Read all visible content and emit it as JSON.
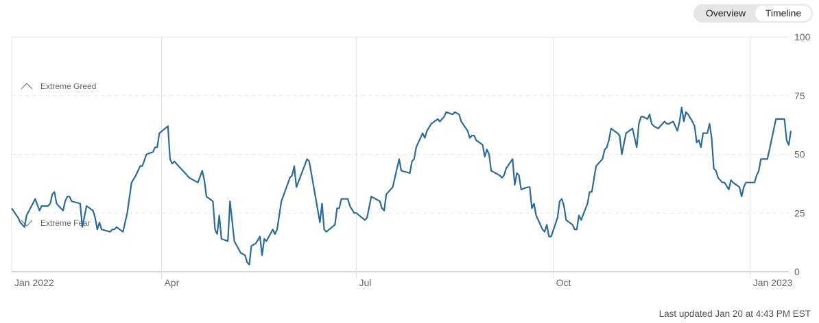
{
  "view_toggle": {
    "options": [
      "Overview",
      "Timeline"
    ],
    "selected": "Timeline"
  },
  "footer": {
    "last_updated": "Last updated Jan 20 at 4:43 PM EST"
  },
  "colors": {
    "line": "#2c6a9a",
    "grid": "#e3e3e3",
    "axis_text": "#666666",
    "band_text": "#666666"
  },
  "chart_data": {
    "type": "line",
    "title": "",
    "xlabel": "",
    "ylabel": "",
    "ylim": [
      0,
      100
    ],
    "xlim": [
      "2022-01-21",
      "2023-01-20"
    ],
    "y_ticks": [
      0,
      25,
      50,
      75,
      100
    ],
    "x_ticks": [
      {
        "date": "2022-01-21",
        "label": "Jan 2022"
      },
      {
        "date": "2022-04-01",
        "label": "Apr"
      },
      {
        "date": "2022-07-01",
        "label": "Jul"
      },
      {
        "date": "2022-10-01",
        "label": "Oct"
      },
      {
        "date": "2023-01-01",
        "label": "Jan 2023"
      }
    ],
    "grid": true,
    "annotations": [
      {
        "label": "Extreme Greed",
        "icon": "chevron-up-icon",
        "y": 75
      },
      {
        "label": "Extreme Fear",
        "icon": "chevron-down-icon",
        "y": 25
      }
    ],
    "series": [
      {
        "points": [
          [
            "2022-01-21",
            27
          ],
          [
            "2022-01-24",
            23
          ],
          [
            "2022-01-25",
            21
          ],
          [
            "2022-01-27",
            19
          ],
          [
            "2022-01-28",
            24
          ],
          [
            "2022-02-01",
            31
          ],
          [
            "2022-02-03",
            26
          ],
          [
            "2022-02-04",
            28
          ],
          [
            "2022-02-07",
            28
          ],
          [
            "2022-02-08",
            29
          ],
          [
            "2022-02-09",
            33
          ],
          [
            "2022-02-10",
            34
          ],
          [
            "2022-02-11",
            29
          ],
          [
            "2022-02-14",
            26
          ],
          [
            "2022-02-15",
            30
          ],
          [
            "2022-02-16",
            32
          ],
          [
            "2022-02-17",
            32
          ],
          [
            "2022-02-18",
            30
          ],
          [
            "2022-02-22",
            29
          ],
          [
            "2022-02-23",
            19
          ],
          [
            "2022-02-25",
            28
          ],
          [
            "2022-02-28",
            26
          ],
          [
            "2022-03-01",
            23
          ],
          [
            "2022-03-02",
            18
          ],
          [
            "2022-03-03",
            21
          ],
          [
            "2022-03-04",
            18
          ],
          [
            "2022-03-08",
            17
          ],
          [
            "2022-03-09",
            18
          ],
          [
            "2022-03-10",
            18
          ],
          [
            "2022-03-11",
            19
          ],
          [
            "2022-03-14",
            17
          ],
          [
            "2022-03-16",
            25
          ],
          [
            "2022-03-18",
            38
          ],
          [
            "2022-03-20",
            41
          ],
          [
            "2022-03-22",
            45
          ],
          [
            "2022-03-23",
            45
          ],
          [
            "2022-03-25",
            50
          ],
          [
            "2022-03-28",
            51
          ],
          [
            "2022-03-29",
            53
          ],
          [
            "2022-03-30",
            53
          ],
          [
            "2022-03-31",
            59
          ],
          [
            "2022-04-04",
            62
          ],
          [
            "2022-04-05",
            48
          ],
          [
            "2022-04-06",
            46
          ],
          [
            "2022-04-07",
            47
          ],
          [
            "2022-04-10",
            44
          ],
          [
            "2022-04-12",
            42
          ],
          [
            "2022-04-14",
            40
          ],
          [
            "2022-04-18",
            38
          ],
          [
            "2022-04-20",
            43
          ],
          [
            "2022-04-21",
            39
          ],
          [
            "2022-04-22",
            32
          ],
          [
            "2022-04-25",
            30
          ],
          [
            "2022-04-26",
            18
          ],
          [
            "2022-04-27",
            16
          ],
          [
            "2022-04-28",
            24
          ],
          [
            "2022-04-29",
            14
          ],
          [
            "2022-05-02",
            13
          ],
          [
            "2022-05-03",
            30
          ],
          [
            "2022-05-05",
            13
          ],
          [
            "2022-05-08",
            8
          ],
          [
            "2022-05-10",
            7
          ],
          [
            "2022-05-11",
            4
          ],
          [
            "2022-05-12",
            3
          ],
          [
            "2022-05-13",
            11
          ],
          [
            "2022-05-15",
            12
          ],
          [
            "2022-05-17",
            15
          ],
          [
            "2022-05-18",
            7
          ],
          [
            "2022-05-19",
            14
          ],
          [
            "2022-05-20",
            13
          ],
          [
            "2022-05-23",
            18
          ],
          [
            "2022-05-24",
            16
          ],
          [
            "2022-05-25",
            18
          ],
          [
            "2022-05-27",
            30
          ],
          [
            "2022-05-31",
            40
          ],
          [
            "2022-06-01",
            41
          ],
          [
            "2022-06-02",
            45
          ],
          [
            "2022-06-03",
            36
          ],
          [
            "2022-06-08",
            48
          ],
          [
            "2022-06-09",
            47
          ],
          [
            "2022-06-14",
            21
          ],
          [
            "2022-06-15",
            29
          ],
          [
            "2022-06-16",
            18
          ],
          [
            "2022-06-17",
            17
          ],
          [
            "2022-06-21",
            20
          ],
          [
            "2022-06-22",
            27
          ],
          [
            "2022-06-23",
            27
          ],
          [
            "2022-06-24",
            31
          ],
          [
            "2022-06-27",
            31
          ],
          [
            "2022-06-28",
            28
          ],
          [
            "2022-06-30",
            25
          ],
          [
            "2022-07-01",
            25
          ],
          [
            "2022-07-05",
            22
          ],
          [
            "2022-07-06",
            23
          ],
          [
            "2022-07-08",
            32
          ],
          [
            "2022-07-12",
            30
          ],
          [
            "2022-07-13",
            27
          ],
          [
            "2022-07-14",
            26
          ],
          [
            "2022-07-15",
            33
          ],
          [
            "2022-07-18",
            36
          ],
          [
            "2022-07-21",
            48
          ],
          [
            "2022-07-22",
            43
          ],
          [
            "2022-07-26",
            42
          ],
          [
            "2022-07-27",
            47
          ],
          [
            "2022-07-28",
            48
          ],
          [
            "2022-07-29",
            53
          ],
          [
            "2022-08-01",
            59
          ],
          [
            "2022-08-02",
            57
          ],
          [
            "2022-08-03",
            60
          ],
          [
            "2022-08-05",
            63
          ],
          [
            "2022-08-08",
            65
          ],
          [
            "2022-08-09",
            64
          ],
          [
            "2022-08-11",
            66
          ],
          [
            "2022-08-12",
            68
          ],
          [
            "2022-08-15",
            67
          ],
          [
            "2022-08-16",
            68
          ],
          [
            "2022-08-18",
            67
          ],
          [
            "2022-08-19",
            64
          ],
          [
            "2022-08-22",
            60
          ],
          [
            "2022-08-23",
            57
          ],
          [
            "2022-08-24",
            58
          ],
          [
            "2022-08-25",
            58
          ],
          [
            "2022-08-26",
            56
          ],
          [
            "2022-08-29",
            54
          ],
          [
            "2022-08-30",
            49
          ],
          [
            "2022-08-31",
            52
          ],
          [
            "2022-09-01",
            50
          ],
          [
            "2022-09-02",
            43
          ],
          [
            "2022-09-06",
            41
          ],
          [
            "2022-09-07",
            40
          ],
          [
            "2022-09-08",
            41
          ],
          [
            "2022-09-09",
            44
          ],
          [
            "2022-09-12",
            48
          ],
          [
            "2022-09-13",
            37
          ],
          [
            "2022-09-14",
            42
          ],
          [
            "2022-09-15",
            41
          ],
          [
            "2022-09-16",
            35
          ],
          [
            "2022-09-19",
            36
          ],
          [
            "2022-09-20",
            36
          ],
          [
            "2022-09-21",
            27
          ],
          [
            "2022-09-22",
            29
          ],
          [
            "2022-09-23",
            24
          ],
          [
            "2022-09-26",
            18
          ],
          [
            "2022-09-27",
            17
          ],
          [
            "2022-09-28",
            20
          ],
          [
            "2022-09-29",
            15
          ],
          [
            "2022-09-30",
            15
          ],
          [
            "2022-10-03",
            23
          ],
          [
            "2022-10-04",
            30
          ],
          [
            "2022-10-05",
            31
          ],
          [
            "2022-10-06",
            28
          ],
          [
            "2022-10-07",
            22
          ],
          [
            "2022-10-10",
            20
          ],
          [
            "2022-10-11",
            18
          ],
          [
            "2022-10-12",
            18
          ],
          [
            "2022-10-13",
            24
          ],
          [
            "2022-10-14",
            22
          ],
          [
            "2022-10-17",
            29
          ],
          [
            "2022-10-18",
            34
          ],
          [
            "2022-10-19",
            34
          ],
          [
            "2022-10-21",
            45
          ],
          [
            "2022-10-24",
            48
          ],
          [
            "2022-10-25",
            52
          ],
          [
            "2022-10-26",
            53
          ],
          [
            "2022-10-27",
            56
          ],
          [
            "2022-10-28",
            61
          ],
          [
            "2022-10-31",
            59
          ],
          [
            "2022-11-01",
            58
          ],
          [
            "2022-11-02",
            50
          ],
          [
            "2022-11-04",
            59
          ],
          [
            "2022-11-07",
            61
          ],
          [
            "2022-11-09",
            53
          ],
          [
            "2022-11-10",
            63
          ],
          [
            "2022-11-11",
            66
          ],
          [
            "2022-11-12",
            66
          ],
          [
            "2022-11-14",
            65
          ],
          [
            "2022-11-15",
            67
          ],
          [
            "2022-11-16",
            63
          ],
          [
            "2022-11-17",
            62
          ],
          [
            "2022-11-19",
            61
          ],
          [
            "2022-11-22",
            64
          ],
          [
            "2022-11-23",
            63
          ],
          [
            "2022-11-24",
            63
          ],
          [
            "2022-11-26",
            64
          ],
          [
            "2022-11-28",
            60
          ],
          [
            "2022-11-29",
            64
          ],
          [
            "2022-11-30",
            70
          ],
          [
            "2022-12-01",
            64
          ],
          [
            "2022-12-02",
            68
          ],
          [
            "2022-12-03",
            67
          ],
          [
            "2022-12-05",
            64
          ],
          [
            "2022-12-06",
            62
          ],
          [
            "2022-12-07",
            55
          ],
          [
            "2022-12-08",
            56
          ],
          [
            "2022-12-09",
            53
          ],
          [
            "2022-12-10",
            59
          ],
          [
            "2022-12-12",
            59
          ],
          [
            "2022-12-13",
            63
          ],
          [
            "2022-12-14",
            57
          ],
          [
            "2022-12-15",
            44
          ],
          [
            "2022-12-16",
            43
          ],
          [
            "2022-12-17",
            40
          ],
          [
            "2022-12-19",
            38
          ],
          [
            "2022-12-20",
            38
          ],
          [
            "2022-12-22",
            35
          ],
          [
            "2022-12-23",
            39
          ],
          [
            "2022-12-24",
            38
          ],
          [
            "2022-12-27",
            36
          ],
          [
            "2022-12-28",
            32
          ],
          [
            "2022-12-29",
            36
          ],
          [
            "2022-12-30",
            38
          ],
          [
            "2023-01-03",
            38
          ],
          [
            "2023-01-04",
            41
          ],
          [
            "2023-01-05",
            43
          ],
          [
            "2023-01-06",
            48
          ],
          [
            "2023-01-09",
            48
          ],
          [
            "2023-01-10",
            52
          ],
          [
            "2023-01-13",
            65
          ],
          [
            "2023-01-17",
            65
          ],
          [
            "2023-01-18",
            56
          ],
          [
            "2023-01-19",
            54
          ],
          [
            "2023-01-20",
            60
          ]
        ]
      }
    ]
  }
}
